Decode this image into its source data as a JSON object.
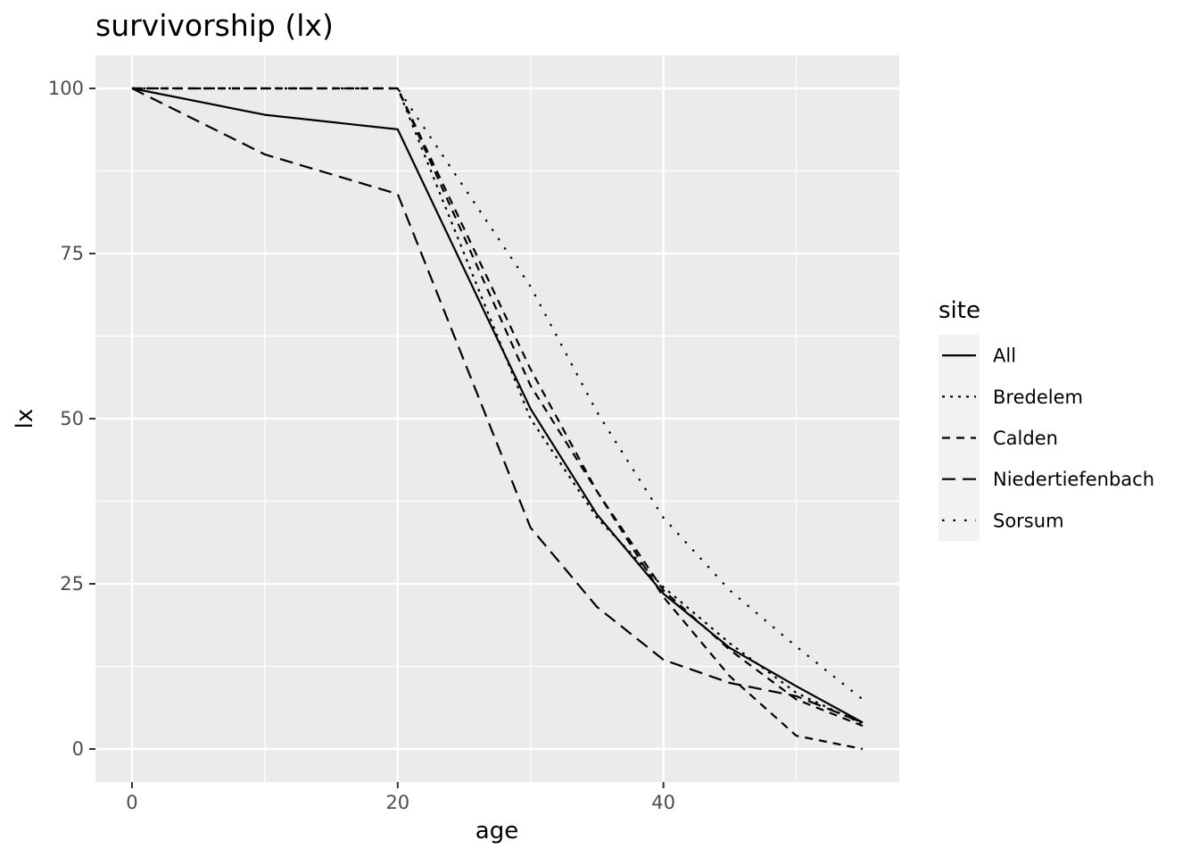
{
  "colors": {
    "panel_background": "#ebebeb",
    "grid": "#ffffff",
    "line": "#000000",
    "tick_text": "#4d4d4d"
  },
  "chart_data": {
    "type": "line",
    "title": "survivorship (lx)",
    "xlabel": "age",
    "ylabel": "lx",
    "xlim": [
      -2.75,
      57.75
    ],
    "ylim": [
      -5,
      105
    ],
    "x_ticks": [
      0,
      20,
      40
    ],
    "y_ticks": [
      0,
      25,
      50,
      75,
      100
    ],
    "grid": true,
    "legend": {
      "title": "site",
      "position": "right"
    },
    "series": [
      {
        "name": "All",
        "linetype": "solid",
        "x": [
          0,
          10,
          20,
          30,
          35,
          40,
          45,
          50,
          55
        ],
        "y": [
          100,
          96,
          93.8,
          51.5,
          35.5,
          23.5,
          15.3,
          9.5,
          4
        ]
      },
      {
        "name": "Bredelem",
        "linetype": "dotted",
        "x": [
          0,
          20,
          30,
          35,
          40,
          45,
          50,
          55
        ],
        "y": [
          100,
          100,
          50,
          35,
          24.5,
          16,
          8.5,
          3.8
        ]
      },
      {
        "name": "Calden",
        "linetype": "dashed",
        "x": [
          0,
          20,
          30,
          35,
          40,
          45,
          50,
          55
        ],
        "y": [
          100,
          100,
          57.5,
          39,
          24,
          15,
          7.5,
          3.5
        ]
      },
      {
        "name": "Niedertiefenbach",
        "linetype": "longdash",
        "x": [
          0,
          10,
          20,
          30,
          35,
          40,
          45,
          50,
          55
        ],
        "y": [
          100,
          90,
          84,
          33.5,
          21.5,
          13.5,
          10,
          8,
          4
        ]
      },
      {
        "name": "Sorsum",
        "linetype": "sparsedot",
        "x": [
          0,
          20,
          30,
          35,
          40,
          45,
          50,
          55
        ],
        "y": [
          100,
          100,
          70,
          51,
          35,
          24,
          15.5,
          7.5
        ]
      },
      {
        "name": "",
        "linetype": "dashed",
        "x": [
          0,
          20,
          30,
          40,
          45,
          50,
          55
        ],
        "y": [
          100,
          100,
          55,
          23,
          11,
          2,
          0
        ]
      }
    ]
  }
}
